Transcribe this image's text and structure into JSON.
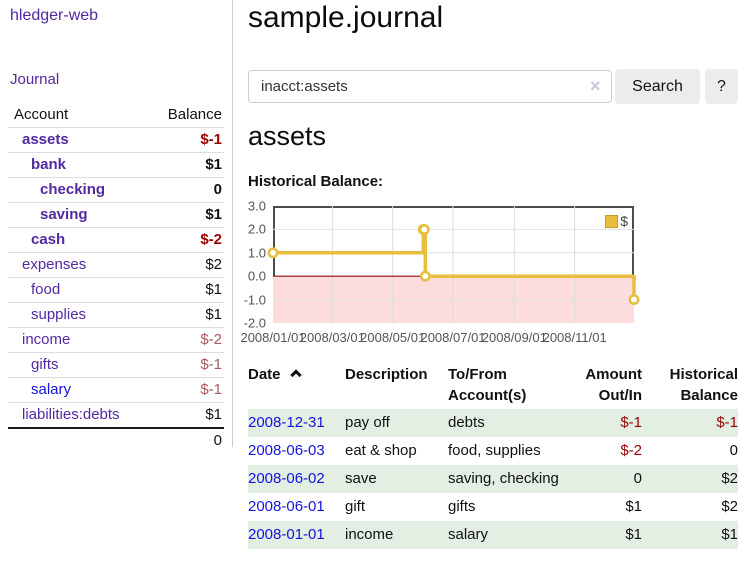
{
  "app": {
    "brand": "hledger-web",
    "nav_journal": "Journal"
  },
  "header": {
    "title": "sample.journal"
  },
  "search": {
    "value": "inacct:assets",
    "clear_icon": "×",
    "button": "Search",
    "help_button": "?"
  },
  "account_page": {
    "title": "assets",
    "chart_label": "Historical Balance:"
  },
  "colors": {
    "link_purple": "#5229a3",
    "link_blue": "#1414dd",
    "negative_strong": "#990000",
    "negative_weak": "#aa5a5a",
    "row_stripe_green": "#e2efe2",
    "chart_line": "#e9bd3e",
    "chart_negative_fill": "#fcdcdc",
    "chart_zero_line": "#8f1010"
  },
  "sidebar": {
    "accounts_header": {
      "account": "Account",
      "balance": "Balance"
    },
    "accounts": [
      {
        "name": "assets",
        "balance": "$-1",
        "indent": 1,
        "bold": true,
        "neg": "neg"
      },
      {
        "name": "bank",
        "balance": "$1",
        "indent": 2,
        "bold": true,
        "neg": ""
      },
      {
        "name": "checking",
        "balance": "0",
        "indent": 3,
        "bold": true,
        "neg": ""
      },
      {
        "name": "saving",
        "balance": "$1",
        "indent": 3,
        "bold": true,
        "neg": ""
      },
      {
        "name": "cash",
        "balance": "$-2",
        "indent": 2,
        "bold": true,
        "neg": "neg"
      },
      {
        "name": "expenses",
        "balance": "$2",
        "indent": 1,
        "bold": false,
        "neg": ""
      },
      {
        "name": "food",
        "balance": "$1",
        "indent": 2,
        "bold": false,
        "neg": ""
      },
      {
        "name": "supplies",
        "balance": "$1",
        "indent": 2,
        "bold": false,
        "neg": ""
      },
      {
        "name": "income",
        "balance": "$-2",
        "indent": 1,
        "bold": false,
        "neg": "negw"
      },
      {
        "name": "gifts",
        "balance": "$-1",
        "indent": 2,
        "bold": false,
        "neg": "negw"
      },
      {
        "name": "salary",
        "balance": "$-1",
        "indent": 2,
        "bold": false,
        "neg": "negw",
        "color": "blue"
      },
      {
        "name": "liabilities:debts",
        "balance": "$1",
        "indent": 1,
        "bold": false,
        "neg": ""
      }
    ],
    "total": "0"
  },
  "chart_data": {
    "type": "line",
    "title": "Historical Balance",
    "series": [
      {
        "name": "$",
        "color": "#e9bd3e",
        "steps": true,
        "points": [
          [
            "2008-01-01",
            1
          ],
          [
            "2008-06-01",
            2
          ],
          [
            "2008-06-02",
            2
          ],
          [
            "2008-06-03",
            0
          ],
          [
            "2008-12-31",
            -1
          ]
        ]
      }
    ],
    "x_range": [
      "2008-01-01",
      "2008-12-31"
    ],
    "x_ticks": [
      "2008/01/01",
      "2008/03/01",
      "2008/05/01",
      "2008/07/01",
      "2008/09/01",
      "2008/11/01"
    ],
    "y_ticks": [
      "3.0",
      "2.0",
      "1.0",
      "0.0",
      "-1.0",
      "-2.0"
    ],
    "ylim": [
      -2,
      3
    ],
    "grid": true,
    "negative_region": {
      "below": 0,
      "fill": "#fcdcdc",
      "line": "#8f1010"
    },
    "legend": {
      "label": "$",
      "position": "top-right"
    }
  },
  "register": {
    "columns": [
      {
        "line1": "Date",
        "line2": "",
        "align": "left",
        "sortable": true
      },
      {
        "line1": "Description",
        "line2": "",
        "align": "left"
      },
      {
        "line1": "To/From",
        "line2": "Account(s)",
        "align": "left"
      },
      {
        "line1": "Amount",
        "line2": "Out/In",
        "align": "right"
      },
      {
        "line1": "Historical",
        "line2": "Balance",
        "align": "right"
      }
    ],
    "rows": [
      {
        "date": "2008-12-31",
        "description": "pay off",
        "accounts": "debts",
        "amount": "$-1",
        "balance": "$-1",
        "amount_neg": true,
        "balance_neg": true,
        "shaded": true
      },
      {
        "date": "2008-06-03",
        "description": "eat & shop",
        "accounts": "food, supplies",
        "amount": "$-2",
        "balance": "0",
        "amount_neg": true,
        "balance_neg": false,
        "shaded": false
      },
      {
        "date": "2008-06-02",
        "description": "save",
        "accounts": "saving, checking",
        "amount": "0",
        "balance": "$2",
        "amount_neg": false,
        "balance_neg": false,
        "shaded": true
      },
      {
        "date": "2008-06-01",
        "description": "gift",
        "accounts": "gifts",
        "amount": "$1",
        "balance": "$2",
        "amount_neg": false,
        "balance_neg": false,
        "shaded": false
      },
      {
        "date": "2008-01-01",
        "description": "income",
        "accounts": "salary",
        "amount": "$1",
        "balance": "$1",
        "amount_neg": false,
        "balance_neg": false,
        "shaded": true
      }
    ]
  }
}
